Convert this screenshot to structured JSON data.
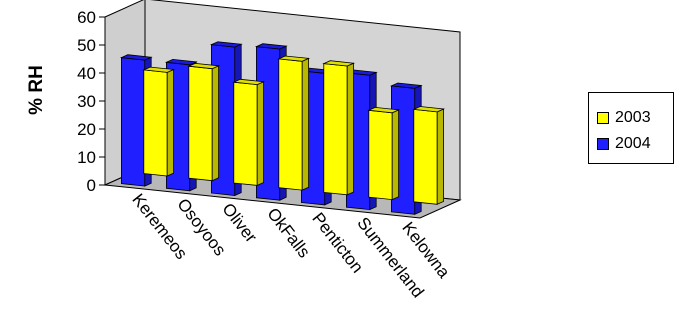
{
  "chart_data": {
    "type": "bar",
    "title": "",
    "ylabel": "% RH",
    "xlabel": "",
    "ylim": [
      0,
      60
    ],
    "yticks": [
      "0",
      "10",
      "20",
      "30",
      "40",
      "50",
      "60"
    ],
    "categories": [
      "Keremeos",
      "Osoyoos",
      "Oliver",
      "OkFalls",
      "Penticton",
      "Summerland",
      "Kelowna"
    ],
    "series": [
      {
        "name": "2003",
        "values": [
          37,
          40,
          36,
          46,
          46,
          31,
          33
        ],
        "color": "#FFFF00"
      },
      {
        "name": "2004",
        "values": [
          45,
          45,
          53,
          54,
          47,
          48,
          45
        ],
        "color": "#1F1FFF"
      }
    ],
    "legend_position": "right",
    "grid": false
  }
}
